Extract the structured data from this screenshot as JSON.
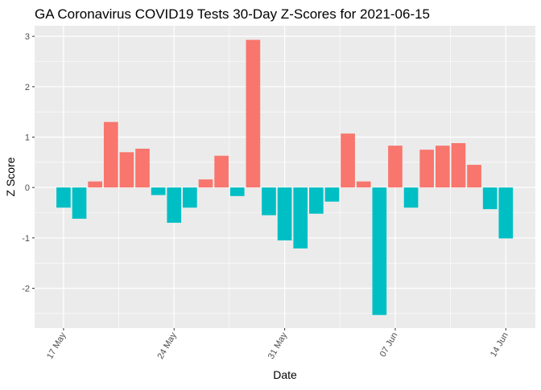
{
  "chart_data": {
    "type": "bar",
    "title": "GA Coronavirus COVID19 Tests 30-Day Z-Scores for 2021-06-15",
    "xlabel": "Date",
    "ylabel": "Z Score",
    "ylim": [
      -2.79,
      3.21
    ],
    "yticks": [
      -2,
      -1,
      0,
      1,
      2,
      3
    ],
    "xticks": [
      {
        "date": "2021-05-17",
        "label": "17 May"
      },
      {
        "date": "2021-05-24",
        "label": "24 May"
      },
      {
        "date": "2021-05-31",
        "label": "31 May"
      },
      {
        "date": "2021-06-07",
        "label": "07 Jun"
      },
      {
        "date": "2021-06-14",
        "label": "14 Jun"
      }
    ],
    "grid": true,
    "legend": "none",
    "colors": {
      "positive": "#F8766D",
      "negative": "#00BFC4",
      "panel": "#EBEBEB",
      "grid": "#FFFFFF"
    },
    "categories": [
      "2021-05-17",
      "2021-05-18",
      "2021-05-19",
      "2021-05-20",
      "2021-05-21",
      "2021-05-22",
      "2021-05-23",
      "2021-05-24",
      "2021-05-25",
      "2021-05-26",
      "2021-05-27",
      "2021-05-28",
      "2021-05-29",
      "2021-05-30",
      "2021-05-31",
      "2021-06-01",
      "2021-06-02",
      "2021-06-03",
      "2021-06-04",
      "2021-06-05",
      "2021-06-06",
      "2021-06-07",
      "2021-06-08",
      "2021-06-09",
      "2021-06-10",
      "2021-06-11",
      "2021-06-12",
      "2021-06-13",
      "2021-06-14"
    ],
    "values": [
      -0.4,
      -0.62,
      0.12,
      1.3,
      0.7,
      0.77,
      -0.15,
      -0.7,
      -0.4,
      0.16,
      0.63,
      -0.17,
      2.93,
      -0.55,
      -1.05,
      -1.21,
      -0.52,
      -0.28,
      1.07,
      0.12,
      -2.53,
      0.83,
      -0.4,
      0.75,
      0.83,
      0.88,
      0.45,
      -0.43,
      -1.01
    ]
  }
}
